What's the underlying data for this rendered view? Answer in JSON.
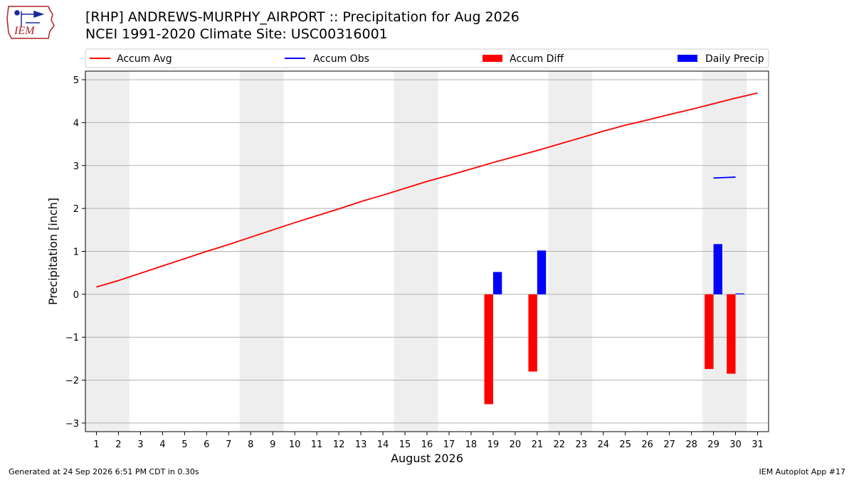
{
  "header": {
    "title_line1": "[RHP] ANDREWS-MURPHY_AIRPORT :: Precipitation for Aug 2026",
    "title_line2": "NCEI 1991-2020 Climate Site: USC00316001",
    "logo_text": "IEM"
  },
  "footer": {
    "generated": "Generated at 24 Sep 2026 6:51 PM CDT in 0.30s",
    "app": "IEM Autoplot App #17"
  },
  "chart_data": {
    "type": "bar",
    "xlabel": "August 2026",
    "ylabel": "Precipitation [inch]",
    "xlim": [
      0.5,
      31.5
    ],
    "ylim": [
      -3.2,
      5.2
    ],
    "x_ticks": [
      1,
      2,
      3,
      4,
      5,
      6,
      7,
      8,
      9,
      10,
      11,
      12,
      13,
      14,
      15,
      16,
      17,
      18,
      19,
      20,
      21,
      22,
      23,
      24,
      25,
      26,
      27,
      28,
      29,
      30,
      31
    ],
    "y_ticks": [
      -3,
      -2,
      -1,
      0,
      1,
      2,
      3,
      4,
      5
    ],
    "y_tick_labels": [
      "−3",
      "−2",
      "−1",
      "0",
      "1",
      "2",
      "3",
      "4",
      "5"
    ],
    "grid": "horizontal",
    "weekend_shading": [
      [
        1,
        2
      ],
      [
        8,
        9
      ],
      [
        15,
        16
      ],
      [
        22,
        23
      ],
      [
        29,
        30
      ]
    ],
    "legend_position": "top",
    "legend": [
      {
        "label": "Accum Avg",
        "kind": "line",
        "color": "#ff0000"
      },
      {
        "label": "Accum Obs",
        "kind": "line",
        "color": "#0000ff"
      },
      {
        "label": "Accum Diff",
        "kind": "bar",
        "color": "#ff0000"
      },
      {
        "label": "Daily Precip",
        "kind": "bar",
        "color": "#0000ff"
      }
    ],
    "series": [
      {
        "name": "Accum Avg",
        "type": "line",
        "color": "#ff0000",
        "x": [
          1,
          2,
          3,
          4,
          5,
          6,
          7,
          8,
          9,
          10,
          11,
          12,
          13,
          14,
          15,
          16,
          17,
          18,
          19,
          20,
          21,
          22,
          23,
          24,
          25,
          26,
          27,
          28,
          29,
          30,
          31
        ],
        "values": [
          0.17,
          0.32,
          0.49,
          0.66,
          0.83,
          1.0,
          1.16,
          1.33,
          1.5,
          1.67,
          1.83,
          1.99,
          2.16,
          2.31,
          2.47,
          2.63,
          2.77,
          2.92,
          3.07,
          3.21,
          3.35,
          3.5,
          3.65,
          3.8,
          3.94,
          4.06,
          4.19,
          4.31,
          4.44,
          4.57,
          4.69
        ]
      },
      {
        "name": "Accum Obs",
        "type": "line",
        "color": "#0000ff",
        "x": [
          29,
          30
        ],
        "values": [
          2.71,
          2.73
        ]
      },
      {
        "name": "Accum Diff",
        "type": "bar",
        "color": "#ff0000",
        "x": [
          19,
          21,
          29,
          30
        ],
        "values": [
          -2.56,
          -1.8,
          -1.74,
          -1.85
        ]
      },
      {
        "name": "Daily Precip",
        "type": "bar",
        "color": "#0000ff",
        "x": [
          19,
          21,
          29,
          30
        ],
        "values": [
          0.52,
          1.02,
          1.17,
          0.02
        ]
      }
    ]
  }
}
